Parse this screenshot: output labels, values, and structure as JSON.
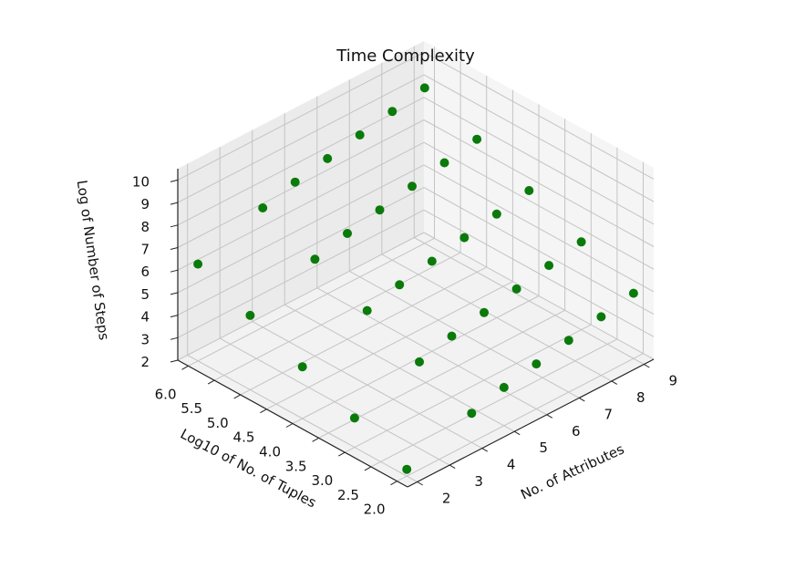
{
  "chart_data": {
    "type": "scatter",
    "title": "Time Complexity",
    "xlabel": "No. of Attributes",
    "ylabel": "Log10 of No. of Tuples",
    "zlabel": "Log of Number of Steps",
    "x_ticks": [
      "2",
      "3",
      "4",
      "5",
      "6",
      "7",
      "8",
      "9"
    ],
    "y_ticks": [
      "2.0",
      "2.5",
      "3.0",
      "3.5",
      "4.0",
      "4.5",
      "5.0",
      "5.5",
      "6.0"
    ],
    "z_ticks": [
      "2",
      "3",
      "4",
      "5",
      "6",
      "7",
      "8",
      "9",
      "10"
    ],
    "xlim": [
      1.7,
      9.3
    ],
    "ylim": [
      1.8,
      6.2
    ],
    "zlim": [
      2,
      10.5
    ],
    "grid": true,
    "point_color": "#0a7a0a",
    "series": [
      {
        "points": [
          [
            2,
            2,
            2.3
          ],
          [
            2,
            3,
            3.3
          ],
          [
            2,
            4,
            4.3
          ],
          [
            2,
            5,
            5.3
          ],
          [
            2,
            6,
            6.3
          ],
          [
            4,
            2,
            3.3
          ],
          [
            4,
            3,
            4.3
          ],
          [
            4,
            4,
            5.3
          ],
          [
            4,
            5,
            6.3
          ],
          [
            4,
            6,
            7.3
          ],
          [
            6,
            2,
            4.0
          ],
          [
            6,
            3,
            5.0
          ],
          [
            6,
            4,
            6.0
          ],
          [
            6,
            5,
            7.0
          ],
          [
            6,
            6,
            8.0
          ],
          [
            8,
            2,
            4.6
          ],
          [
            8,
            3,
            5.6
          ],
          [
            8,
            4,
            6.6
          ],
          [
            8,
            5,
            7.6
          ],
          [
            8,
            6,
            8.6
          ],
          [
            9,
            2,
            4.9
          ],
          [
            9,
            3,
            5.9
          ],
          [
            9,
            4,
            6.9
          ],
          [
            9,
            5,
            7.9
          ],
          [
            9,
            6,
            8.9
          ],
          [
            5,
            2,
            3.7
          ],
          [
            5,
            3,
            4.7
          ],
          [
            5,
            4,
            5.7
          ],
          [
            5,
            5,
            6.7
          ],
          [
            5,
            6,
            7.7
          ],
          [
            7,
            2,
            4.3
          ],
          [
            7,
            3,
            5.3
          ],
          [
            7,
            4,
            6.3
          ],
          [
            7,
            5,
            7.3
          ],
          [
            7,
            6,
            8.3
          ]
        ]
      }
    ]
  }
}
